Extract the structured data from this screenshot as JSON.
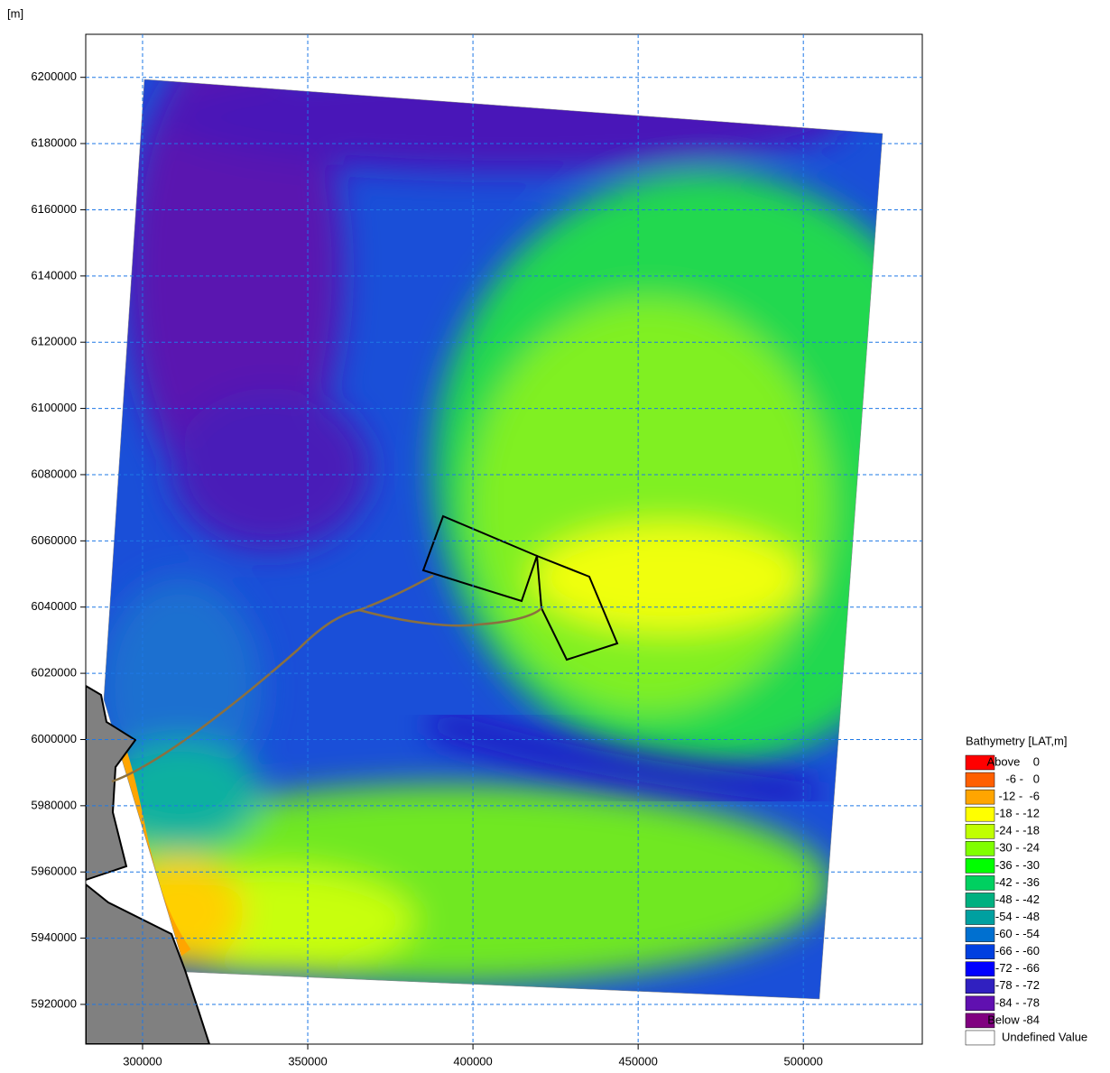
{
  "chart_data": {
    "type": "map",
    "y_unit_label": "[m]",
    "xlim": [
      282800,
      536000
    ],
    "ylim": [
      5908000,
      6213000
    ],
    "xticks": [
      300000,
      350000,
      400000,
      450000,
      500000
    ],
    "yticks": [
      5920000,
      5940000,
      5960000,
      5980000,
      6000000,
      6020000,
      6040000,
      6060000,
      6080000,
      6100000,
      6120000,
      6140000,
      6160000,
      6180000,
      6200000
    ],
    "grid": true,
    "legend": {
      "title": "Bathymetry [LAT,m]",
      "position": "lower right",
      "entries": [
        {
          "label": "Above    0",
          "color": "#ff0000"
        },
        {
          "label": "-6 -   0",
          "color": "#ff6000"
        },
        {
          "label": "-12 -  -6",
          "color": "#ffa500"
        },
        {
          "label": "-18 - -12",
          "color": "#ffff00"
        },
        {
          "label": "-24 - -18",
          "color": "#c0ff00"
        },
        {
          "label": "-30 - -24",
          "color": "#80ff00"
        },
        {
          "label": "-36 - -30",
          "color": "#00ff00"
        },
        {
          "label": "-42 - -36",
          "color": "#00d060"
        },
        {
          "label": "-48 - -42",
          "color": "#00b080"
        },
        {
          "label": "-54 - -48",
          "color": "#00a0a0"
        },
        {
          "label": "-60 - -54",
          "color": "#0070d0"
        },
        {
          "label": "-66 - -60",
          "color": "#0040e0"
        },
        {
          "label": "-72 - -66",
          "color": "#0000ff"
        },
        {
          "label": "-78 - -72",
          "color": "#3020c0"
        },
        {
          "label": "-84 - -78",
          "color": "#6010b0"
        },
        {
          "label": "Below -84",
          "color": "#800080"
        },
        {
          "label": "Undefined Value",
          "color": "#ffffff"
        }
      ]
    }
  }
}
